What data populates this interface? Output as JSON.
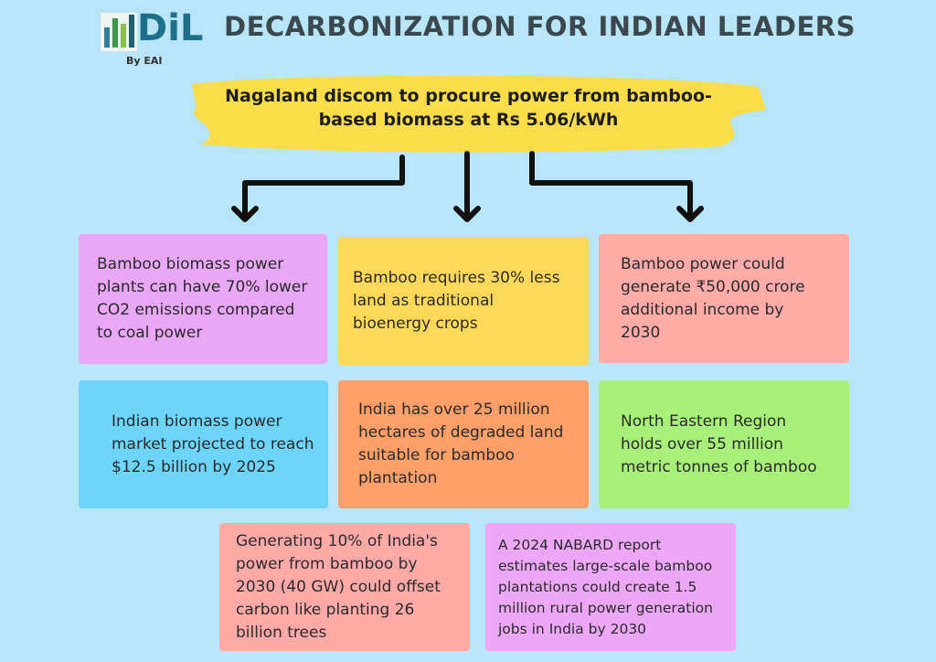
{
  "logo": {
    "text": "DiL",
    "byline": "By EAI"
  },
  "header": {
    "title": "DECARBONIZATION FOR INDIAN LEADERS"
  },
  "headline": "Nagaland discom to procure power from bamboo-based biomass at Rs 5.06/kWh",
  "cards": [
    "Bamboo biomass power plants can have 70% lower CO2 emissions compared to coal power",
    "Bamboo requires 30% less land as traditional bioenergy crops",
    "Bamboo power could generate ₹50,000 crore additional income by 2030",
    "Indian biomass power market projected to reach $12.5 billion by 2025",
    "India has over 25 million hectares of degraded land suitable for bamboo plantation",
    "North Eastern Region holds over 55 million metric tonnes of bamboo",
    "Generating 10% of India's power from bamboo by 2030 (40 GW) could offset carbon like planting 26 billion trees",
    "A 2024 NABARD report estimates large-scale bamboo plantations could create 1.5 million rural power generation jobs in India by 2030"
  ]
}
